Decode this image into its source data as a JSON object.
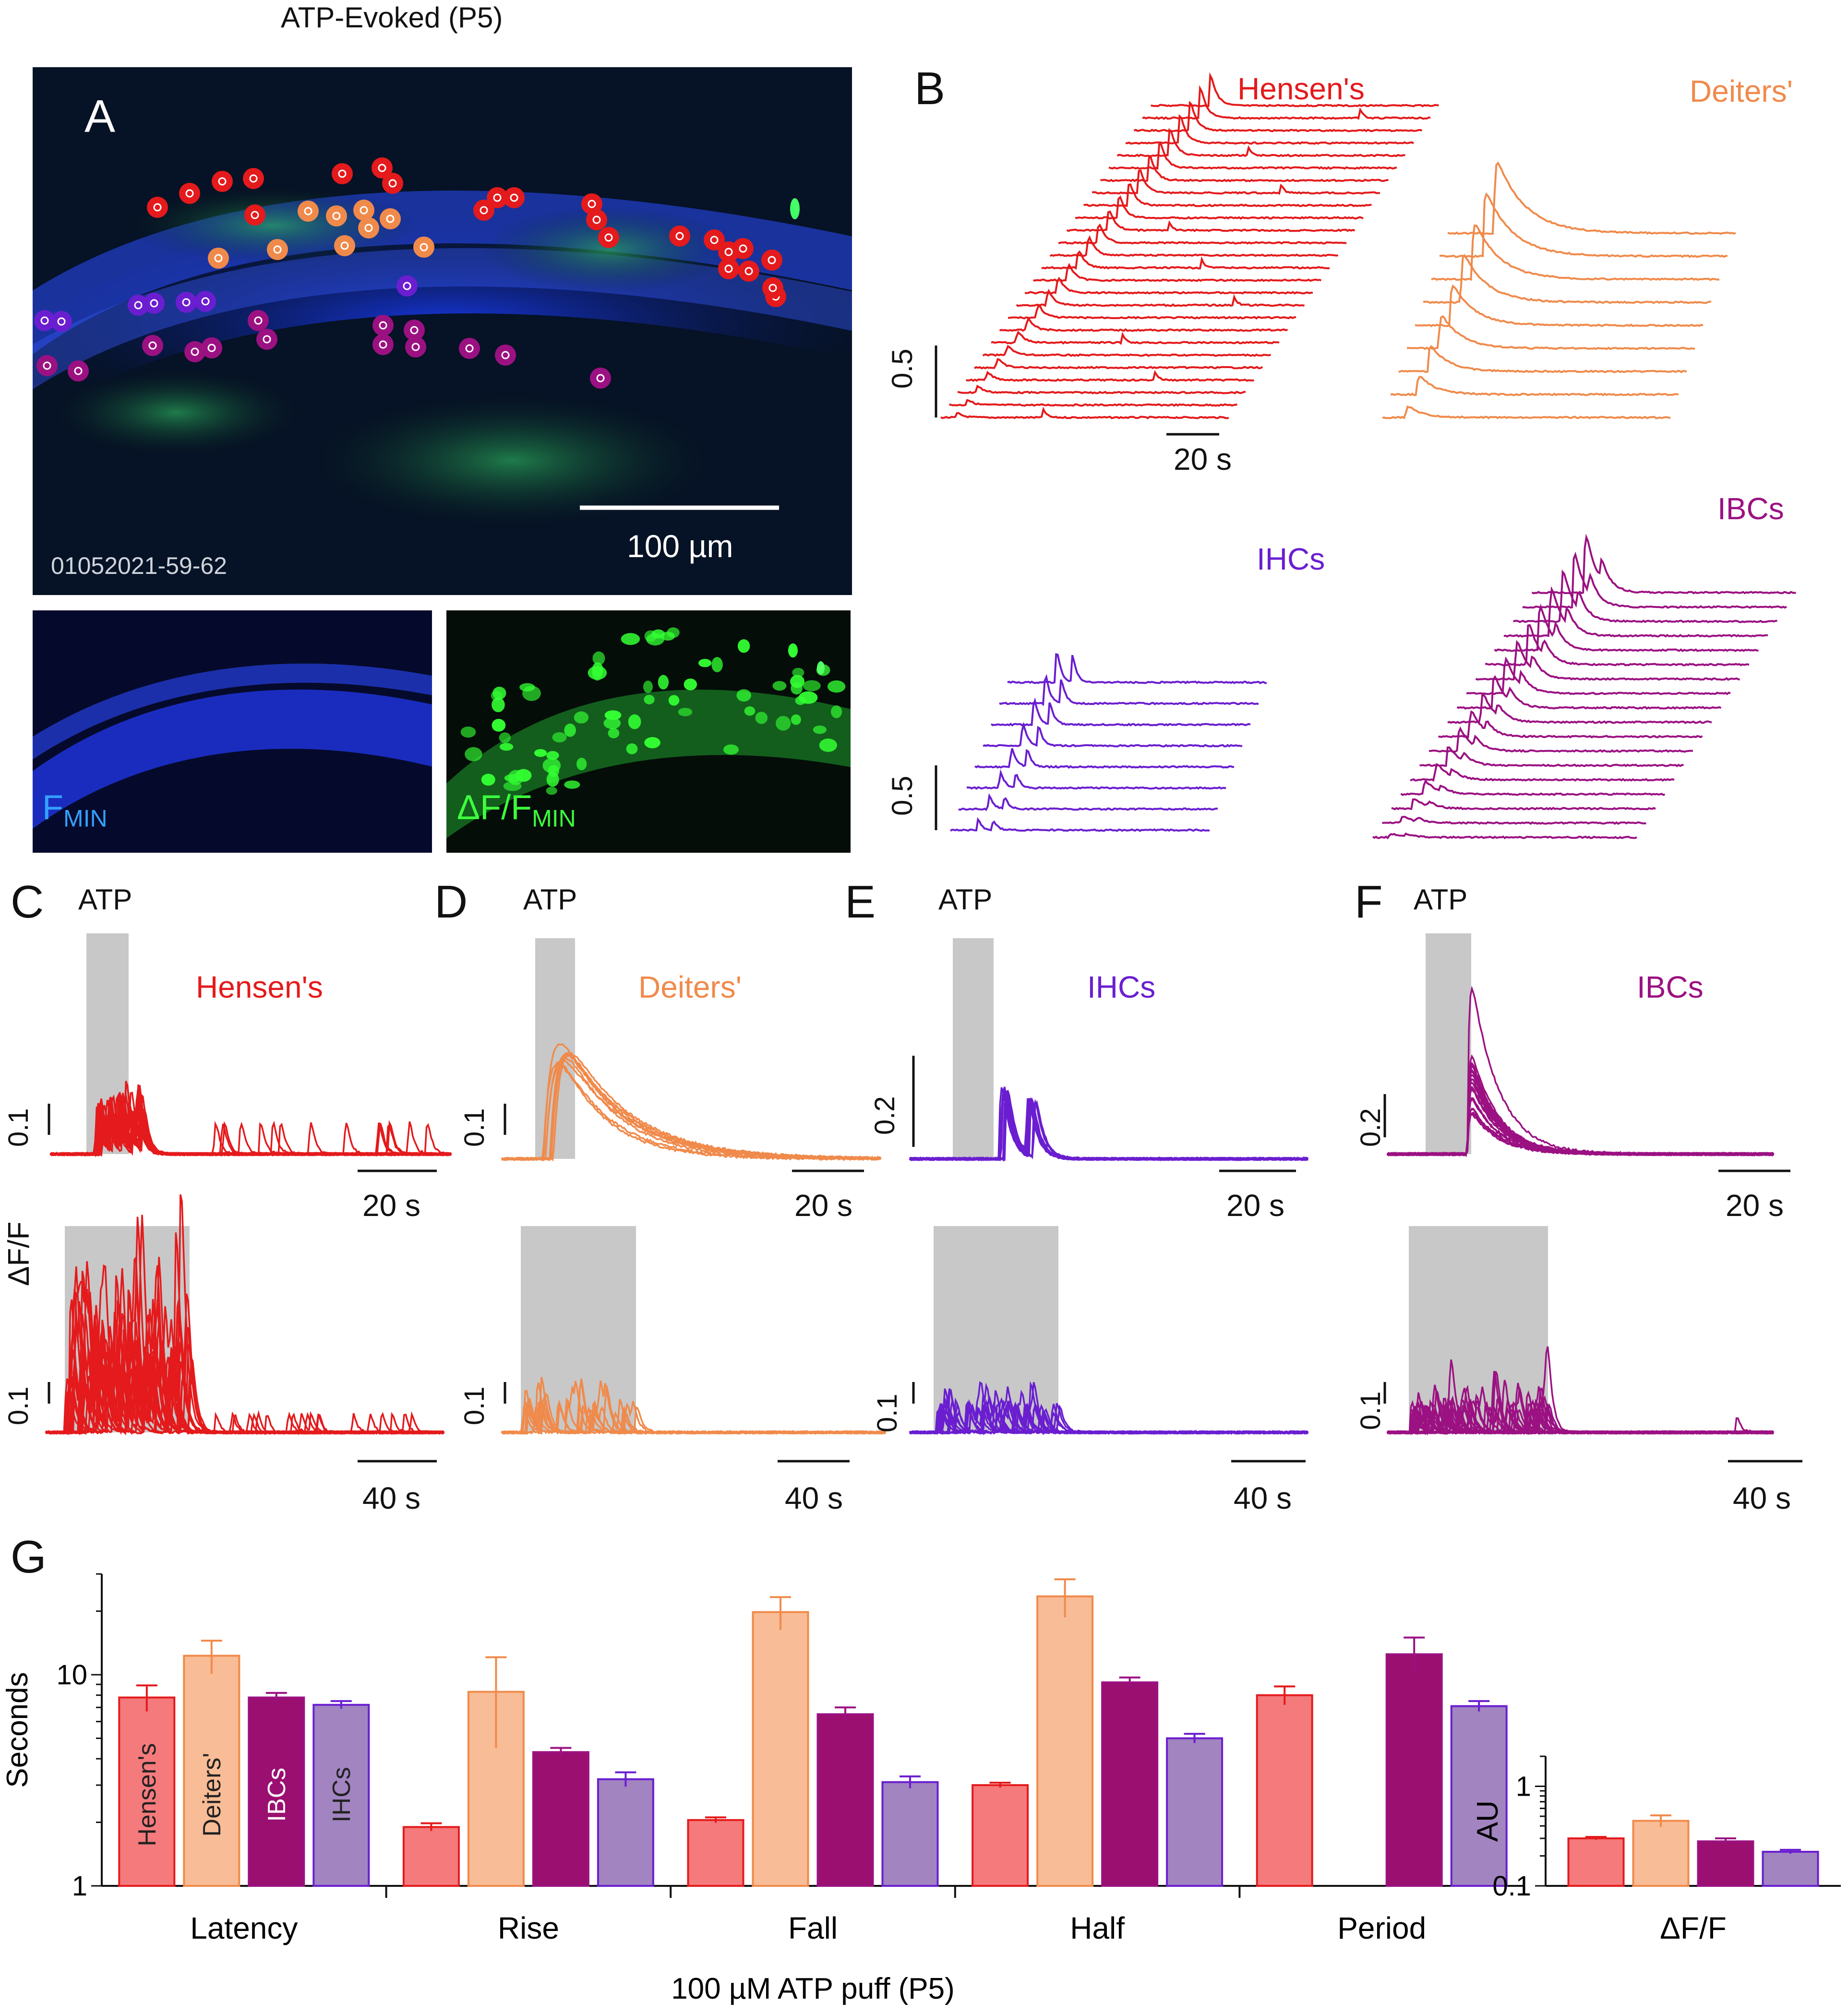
{
  "figure_title": "ATP-Evoked (P5)",
  "panel_labels": {
    "A": "A",
    "B": "B",
    "C": "C",
    "D": "D",
    "E": "E",
    "F": "F",
    "G": "G"
  },
  "colors": {
    "hensens": "#e41a1c",
    "deiters": "#f08a4b",
    "ihcs": "#6a1ed0",
    "ibcs": "#9b1182",
    "hensens_fill": "#f47a7c",
    "deiters_fill": "#f8bc96",
    "ibcs_fill": "#9a0f70",
    "ihcs_fill": "#a184c0"
  },
  "panelA": {
    "scale_bar": "100 µm",
    "image_id": "01052021-59-62",
    "fmin_label": "F",
    "fmin_sub": "MIN",
    "dff_label": "ΔF/F",
    "dff_sub": "MIN"
  },
  "panelB": {
    "labels": {
      "hensens": "Hensen's",
      "deiters": "Deiters'",
      "ihcs": "IHCs",
      "ibcs": "IBCs"
    },
    "scale_y": "0.5",
    "scale_x": "20 s"
  },
  "panelsCF": {
    "atp_label": "ATP",
    "dff_axis": "ΔF/F",
    "C": {
      "name": "Hensen's",
      "top_scale_y": "0.1",
      "top_scale_x": "20 s",
      "bottom_scale_y": "0.1",
      "bottom_scale_x": "40 s"
    },
    "D": {
      "name": "Deiters'",
      "top_scale_y": "0.1",
      "top_scale_x": "20 s",
      "bottom_scale_y": "0.1",
      "bottom_scale_x": "40 s"
    },
    "E": {
      "name": "IHCs",
      "top_scale_y": "0.2",
      "top_scale_x": "20 s",
      "bottom_scale_y": "0.1",
      "bottom_scale_x": "40 s"
    },
    "F": {
      "name": "IBCs",
      "top_scale_y": "0.2",
      "top_scale_x": "20 s",
      "bottom_scale_y": "0.1",
      "bottom_scale_x": "40 s"
    }
  },
  "chart_data": [
    {
      "type": "bar",
      "title": "",
      "xlabel": "100 µM ATP puff (P5)",
      "ylabel": "Seconds",
      "yscale": "log",
      "ylim": [
        1,
        30
      ],
      "yticks": [
        "1",
        "10"
      ],
      "categories": [
        "Latency",
        "Rise",
        "Fall",
        "Half",
        "Period"
      ],
      "bar_labels": [
        "Hensen's",
        "Deiters'",
        "IBCs",
        "IHCs"
      ],
      "series": [
        {
          "name": "Hensen's",
          "values": [
            7.8,
            1.9,
            2.05,
            3.0,
            8.0
          ],
          "errors": [
            1.1,
            0.08,
            0.06,
            0.08,
            0.8
          ]
        },
        {
          "name": "Deiters'",
          "values": [
            12.3,
            8.3,
            19.8,
            23.5,
            null
          ],
          "errors": [
            2.2,
            3.8,
            3.5,
            4.8,
            null
          ]
        },
        {
          "name": "IBCs",
          "values": [
            7.8,
            4.3,
            6.5,
            9.2,
            12.5
          ],
          "errors": [
            0.4,
            0.2,
            0.5,
            0.5,
            2.5
          ]
        },
        {
          "name": "IHCs",
          "values": [
            7.2,
            3.2,
            3.1,
            5.0,
            7.1
          ],
          "errors": [
            0.3,
            0.25,
            0.2,
            0.25,
            0.4
          ]
        }
      ]
    },
    {
      "type": "bar",
      "title": "",
      "xlabel": "",
      "ylabel": "AU",
      "yscale": "log",
      "ylim": [
        0.1,
        2
      ],
      "yticks": [
        "0.1",
        "1"
      ],
      "categories": [
        "ΔF/F"
      ],
      "series": [
        {
          "name": "Hensen's",
          "values": [
            0.3
          ],
          "errors": [
            0.01
          ]
        },
        {
          "name": "Deiters'",
          "values": [
            0.45
          ],
          "errors": [
            0.06
          ]
        },
        {
          "name": "IBCs",
          "values": [
            0.28
          ],
          "errors": [
            0.02
          ]
        },
        {
          "name": "IHCs",
          "values": [
            0.22
          ],
          "errors": [
            0.01
          ]
        }
      ]
    }
  ]
}
